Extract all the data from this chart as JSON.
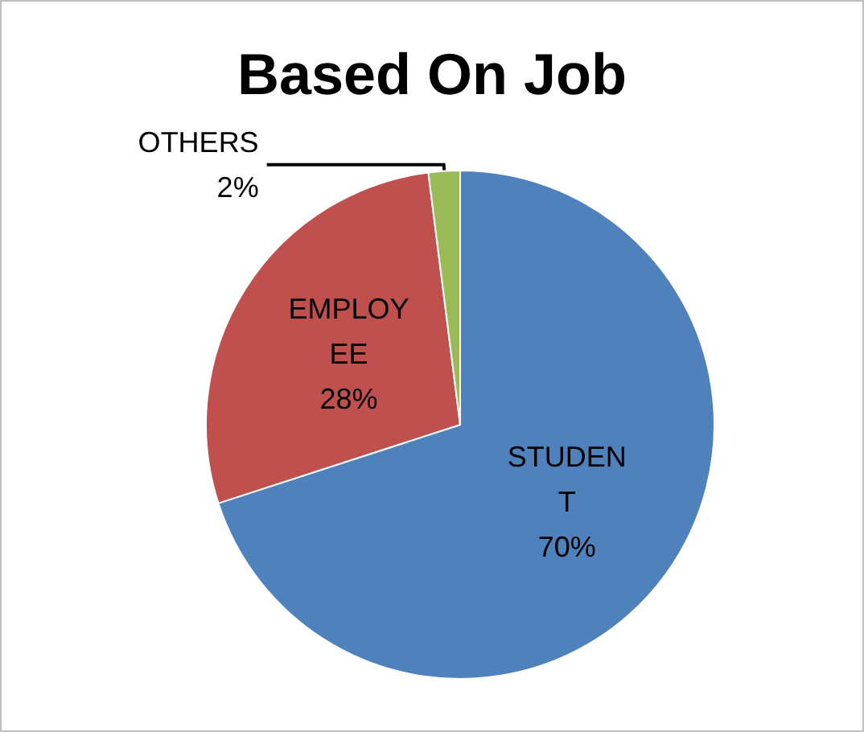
{
  "chart_data": {
    "type": "pie",
    "title": "Based On Job",
    "categories": [
      "STUDENT",
      "EMPLOYEE",
      "OTHERS"
    ],
    "values": [
      70,
      28,
      2
    ],
    "value_labels": [
      "70%",
      "28%",
      "2%"
    ],
    "colors": [
      "#4f81bd",
      "#c0504d",
      "#9bbb59"
    ],
    "legend": false
  }
}
